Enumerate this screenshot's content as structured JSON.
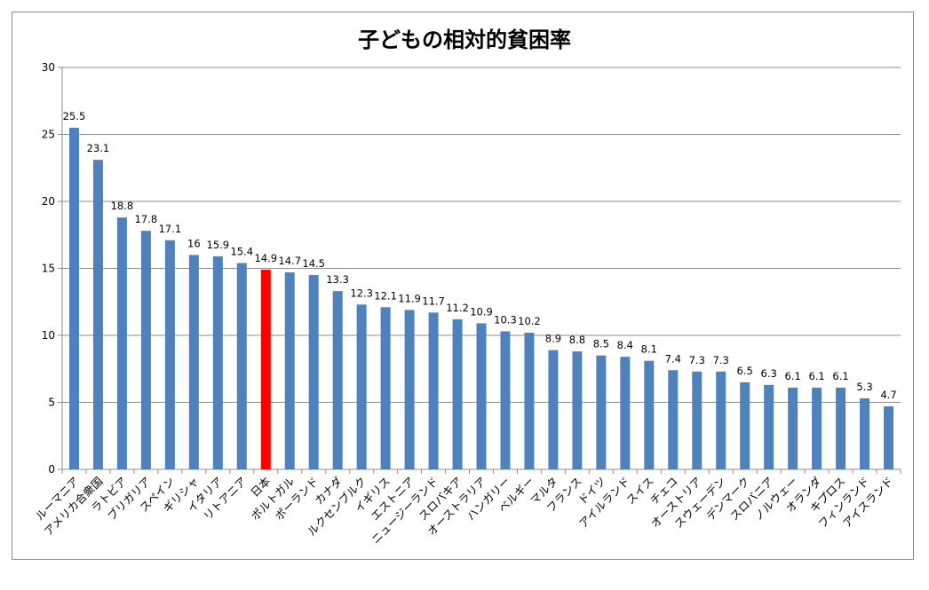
{
  "chart_data": {
    "type": "bar",
    "title": "子どもの相対的貧困率",
    "xlabel": "",
    "ylabel": "",
    "ylim": [
      0,
      30
    ],
    "yticks": [
      0,
      5,
      10,
      15,
      20,
      25,
      30
    ],
    "grid": true,
    "legend": "none",
    "bar_color": "#4f81bd",
    "highlight_color": "#ff0000",
    "highlight_category": "日本",
    "categories": [
      "ルーマニア",
      "アメリカ合衆国",
      "ラトビア",
      "ブリガリア",
      "スペイン",
      "ギリシャ",
      "イタリア",
      "リトアニア",
      "日本",
      "ポルトガル",
      "ポーランド",
      "カナダ",
      "ルクセンブルク",
      "イギリス",
      "エストニア",
      "ニュージーランド",
      "スロバキア",
      "オーストラリア",
      "ハンガリー",
      "ベルギー",
      "マルタ",
      "フランス",
      "ドイツ",
      "アイルランド",
      "スイス",
      "チェコ",
      "オーストリア",
      "スウェーデン",
      "デンマーク",
      "スロバニア",
      "ノルウェー",
      "オランダ",
      "キプロス",
      "フィンランド",
      "アイスランド"
    ],
    "values": [
      25.5,
      23.1,
      18.8,
      17.8,
      17.1,
      16,
      15.9,
      15.4,
      14.9,
      14.7,
      14.5,
      13.3,
      12.3,
      12.1,
      11.9,
      11.7,
      11.2,
      10.9,
      10.3,
      10.2,
      8.9,
      8.8,
      8.5,
      8.4,
      8.1,
      7.4,
      7.3,
      7.3,
      6.5,
      6.3,
      6.1,
      6.1,
      6.1,
      5.3,
      4.7
    ]
  }
}
